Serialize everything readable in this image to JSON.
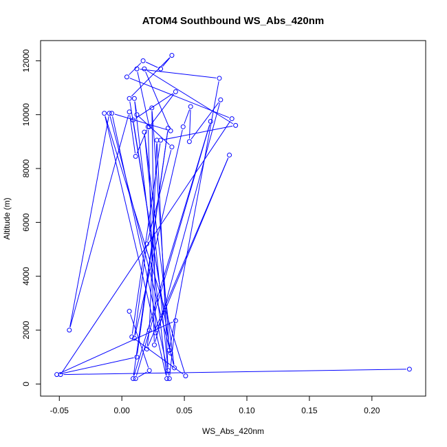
{
  "chart_data": {
    "type": "line",
    "title": "ATOM4 Southbound WS_Abs_420nm",
    "xlabel": "WS_Abs_420nm",
    "ylabel": "Altitude (m)",
    "xlim": [
      -0.065,
      0.243
    ],
    "ylim": [
      -450,
      12750
    ],
    "x_ticks": [
      -0.05,
      0.0,
      0.05,
      0.1,
      0.15,
      0.2
    ],
    "x_tick_labels": [
      "-0.05",
      "0.00",
      "0.05",
      "0.10",
      "0.15",
      "0.20"
    ],
    "y_ticks": [
      0,
      2000,
      4000,
      6000,
      8000,
      10000,
      12000
    ],
    "y_tick_labels": [
      "0",
      "2000",
      "4000",
      "6000",
      "8000",
      "10000",
      "12000"
    ],
    "grid": false,
    "legend": "none",
    "series": [
      {
        "color": "#0000ff",
        "marker": "open-circle",
        "x": [
          0.23,
          -0.049,
          0.088,
          0.004,
          0.017,
          0.031,
          0.04,
          0.006,
          0.039,
          0.009,
          0.043,
          0.022,
          0.012,
          0.078,
          0.038,
          0.024,
          0.027,
          0.086,
          0.02,
          0.022,
          0.028,
          0.037,
          0.018,
          0.042,
          -0.01,
          -0.042,
          0.006,
          0.011,
          0.021,
          0.026,
          0.079,
          0.054,
          0.055,
          0.049,
          0.01,
          0.02,
          0.04,
          0.012,
          0.01,
          0.036,
          -0.014,
          0.051,
          0.008,
          0.031,
          0.091,
          0.018,
          0.039,
          -0.008,
          0.038,
          0.043,
          -0.052,
          0.012,
          0.037,
          0.009,
          0.071,
          0.011,
          0.022,
          0.006
        ],
        "y": [
          550,
          350,
          9850,
          11400,
          12000,
          11700,
          12200,
          10600,
          1150,
          9800,
          10850,
          9550,
          11700,
          11350,
          1250,
          10250,
          1900,
          8500,
          1300,
          2000,
          9050,
          500,
          9350,
          600,
          10050,
          2000,
          10100,
          8450,
          9550,
          1450,
          10550,
          9000,
          10300,
          9550,
          1700,
          5200,
          8800,
          10000,
          10600,
          200,
          10050,
          300,
          1750,
          9050,
          9600,
          11700,
          9400,
          10050,
          200,
          2350,
          350,
          1000,
          9500,
          200,
          9750,
          200,
          500,
          2700
        ]
      }
    ]
  }
}
